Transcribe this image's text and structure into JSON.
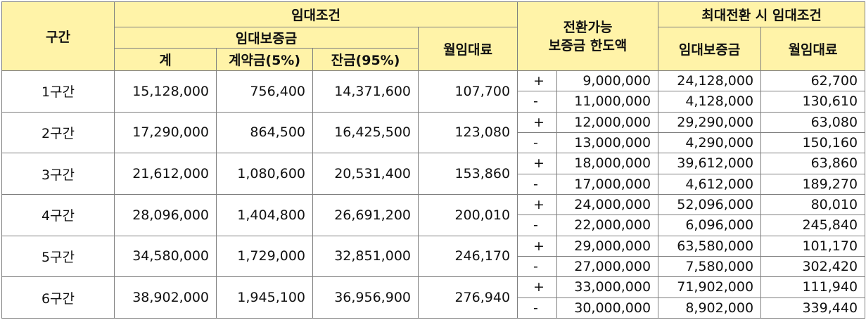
{
  "header": {
    "section": "구간",
    "rental_terms": "임대조건",
    "deposit": "임대보증금",
    "total": "계",
    "contract_payment": "계약금(5%)",
    "balance_payment": "잔금(95%)",
    "monthly_rent": "월임대료",
    "convertible_line1": "전환가능",
    "convertible_line2": "보증금 한도액",
    "max_conversion": "최대전환 시 임대조건",
    "max_deposit": "임대보증금",
    "max_monthly_rent": "월임대료"
  },
  "rows": [
    {
      "section": "1구간",
      "total": "15,128,000",
      "contract": "756,400",
      "balance": "14,371,600",
      "rent": "107,700",
      "plus": {
        "sign": "+",
        "limit": "9,000,000",
        "deposit": "24,128,000",
        "rent": "62,700"
      },
      "minus": {
        "sign": "-",
        "limit": "11,000,000",
        "deposit": "4,128,000",
        "rent": "130,610"
      }
    },
    {
      "section": "2구간",
      "total": "17,290,000",
      "contract": "864,500",
      "balance": "16,425,500",
      "rent": "123,080",
      "plus": {
        "sign": "+",
        "limit": "12,000,000",
        "deposit": "29,290,000",
        "rent": "63,080"
      },
      "minus": {
        "sign": "-",
        "limit": "13,000,000",
        "deposit": "4,290,000",
        "rent": "150,160"
      }
    },
    {
      "section": "3구간",
      "total": "21,612,000",
      "contract": "1,080,600",
      "balance": "20,531,400",
      "rent": "153,860",
      "plus": {
        "sign": "+",
        "limit": "18,000,000",
        "deposit": "39,612,000",
        "rent": "63,860"
      },
      "minus": {
        "sign": "-",
        "limit": "17,000,000",
        "deposit": "4,612,000",
        "rent": "189,270"
      }
    },
    {
      "section": "4구간",
      "total": "28,096,000",
      "contract": "1,404,800",
      "balance": "26,691,200",
      "rent": "200,010",
      "plus": {
        "sign": "+",
        "limit": "24,000,000",
        "deposit": "52,096,000",
        "rent": "80,010"
      },
      "minus": {
        "sign": "-",
        "limit": "22,000,000",
        "deposit": "6,096,000",
        "rent": "245,840"
      }
    },
    {
      "section": "5구간",
      "total": "34,580,000",
      "contract": "1,729,000",
      "balance": "32,851,000",
      "rent": "246,170",
      "plus": {
        "sign": "+",
        "limit": "29,000,000",
        "deposit": "63,580,000",
        "rent": "101,170"
      },
      "minus": {
        "sign": "-",
        "limit": "27,000,000",
        "deposit": "7,580,000",
        "rent": "302,420"
      }
    },
    {
      "section": "6구간",
      "total": "38,902,000",
      "contract": "1,945,100",
      "balance": "36,956,900",
      "rent": "276,940",
      "plus": {
        "sign": "+",
        "limit": "33,000,000",
        "deposit": "71,902,000",
        "rent": "111,940"
      },
      "minus": {
        "sign": "-",
        "limit": "30,000,000",
        "deposit": "8,902,000",
        "rent": "339,440"
      }
    }
  ],
  "colors": {
    "header_bg": "#fff3a8",
    "border": "#7f7f7f"
  }
}
